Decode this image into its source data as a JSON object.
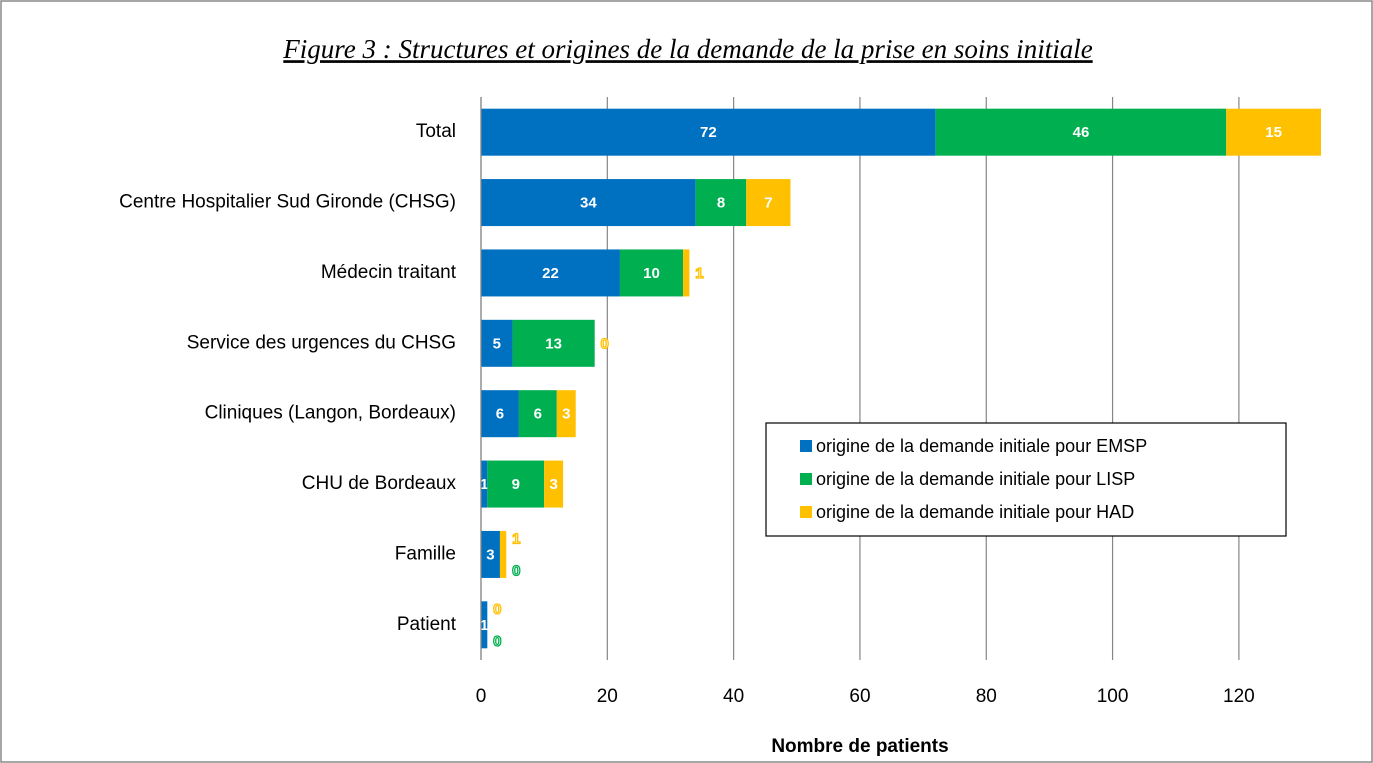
{
  "chart_data": {
    "type": "stacked_barh",
    "title": "Figure 3 : Structures et origines de la demande de la prise en soins initiale",
    "xlabel": "Nombre de patients",
    "categories": [
      "Total",
      "Centre Hospitalier Sud Gironde (CHSG)",
      "Médecin traitant",
      "Service des urgences du CHSG",
      "Cliniques (Langon, Bordeaux)",
      "CHU de Bordeaux",
      "Famille",
      "Patient"
    ],
    "series": [
      {
        "name": "origine de la demande initiale pour EMSP",
        "color": "#0070c0",
        "values": [
          72,
          34,
          22,
          5,
          6,
          1,
          3,
          1
        ]
      },
      {
        "name": "origine de la demande initiale pour LISP",
        "color": "#00b050",
        "values": [
          46,
          8,
          10,
          13,
          6,
          9,
          0,
          0
        ]
      },
      {
        "name": "origine de la demande initiale pour HAD",
        "color": "#ffc000",
        "values": [
          15,
          7,
          1,
          0,
          3,
          3,
          1,
          0
        ]
      }
    ],
    "xlim": [
      0,
      133
    ],
    "xticks": [
      0,
      20,
      40,
      60,
      80,
      100,
      120
    ],
    "grid": true,
    "legend": "lower right"
  }
}
